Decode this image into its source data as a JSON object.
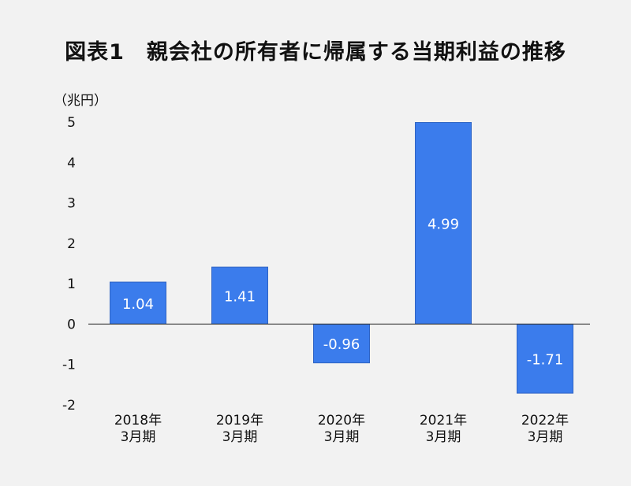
{
  "title": "図表1　親会社の所有者に帰属する当期利益の推移",
  "unit_label": "（兆円）",
  "colors": {
    "bar": "#3b7cec",
    "bar_border": "#2f64c4",
    "axis": "#333333",
    "background": "#f2f2f2"
  },
  "chart_data": {
    "type": "bar",
    "title": "図表1　親会社の所有者に帰属する当期利益の推移",
    "ylabel": "（兆円）",
    "xlabel": "",
    "ylim": [
      -2,
      5
    ],
    "yticks": [
      "5",
      "4",
      "3",
      "2",
      "1",
      "0",
      "-1",
      "-2"
    ],
    "categories": [
      [
        "2018年",
        "3月期"
      ],
      [
        "2019年",
        "3月期"
      ],
      [
        "2020年",
        "3月期"
      ],
      [
        "2021年",
        "3月期"
      ],
      [
        "2022年",
        "3月期"
      ]
    ],
    "values": [
      1.04,
      1.41,
      -0.96,
      4.99,
      -1.71
    ],
    "value_labels": [
      "1.04",
      "1.41",
      "-0.96",
      "4.99",
      "-1.71"
    ],
    "grid": false,
    "legend": "none"
  }
}
